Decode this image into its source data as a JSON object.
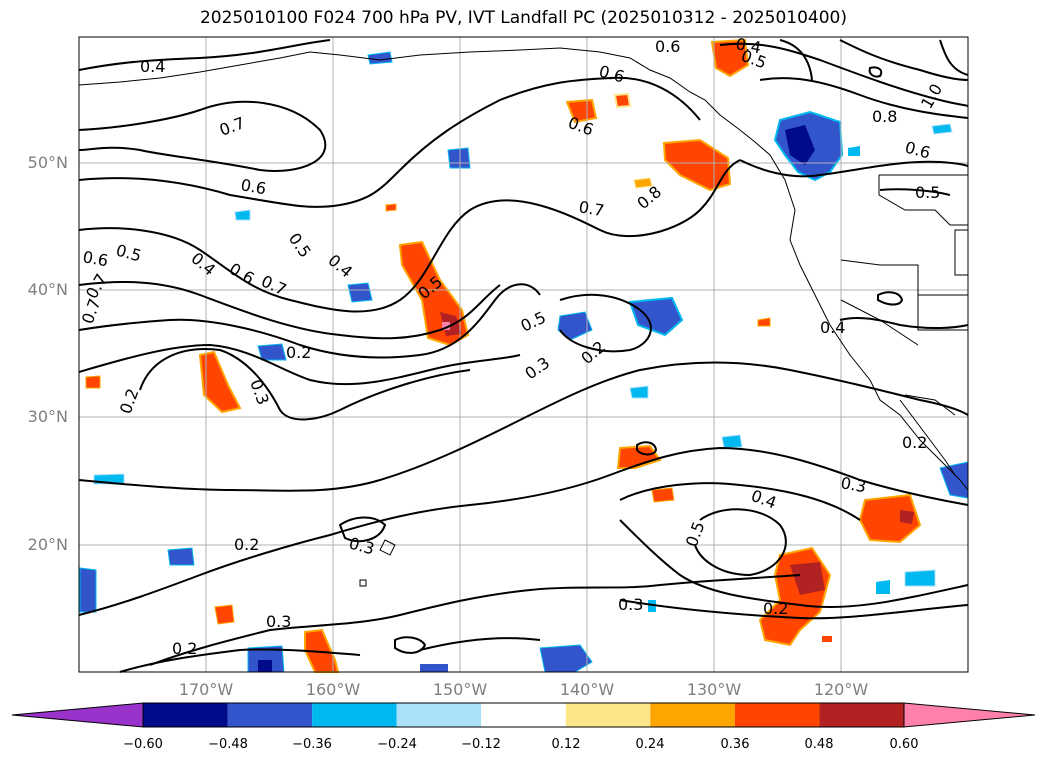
{
  "title": "2025010100 F024 700 hPa PV, IVT Landfall PC (2025010312 - 2025010400)",
  "lat_labels": [
    "50°N",
    "40°N",
    "30°N",
    "20°N"
  ],
  "lon_labels": [
    "170°W",
    "160°W",
    "150°W",
    "140°W",
    "130°W",
    "120°W"
  ],
  "colorbar": {
    "ticks": [
      "−0.60",
      "−0.48",
      "−0.36",
      "−0.24",
      "−0.12",
      "0.12",
      "0.24",
      "0.36",
      "0.48",
      "0.60"
    ],
    "colors": [
      "#9a33cc",
      "#000b8a",
      "#3355cc",
      "#00b8f0",
      "#aae0f8",
      "#ffffff",
      "#fde68a",
      "#ffa500",
      "#ff4500",
      "#b22222",
      "#ff80a8"
    ]
  },
  "contour_labels": [
    "0.4",
    "0.7",
    "0.6",
    "0.5",
    "0.4",
    "0.6",
    "0.7",
    "0.5",
    "0.4",
    "0.7",
    "0.2",
    "0.2",
    "0.3",
    "0.6",
    "0.6",
    "0.7",
    "0.8",
    "0.6",
    "0.8",
    "0.6",
    "1.0",
    "0.5",
    "0.4",
    "0.5",
    "0.3",
    "0.2",
    "0.4",
    "0.3",
    "0.2",
    "0.5",
    "0.3",
    "0.2",
    "0.2",
    "0.3",
    "0.2",
    "0.3",
    "0.4",
    "0.5",
    "0.7",
    "0.6",
    "0.5"
  ]
}
